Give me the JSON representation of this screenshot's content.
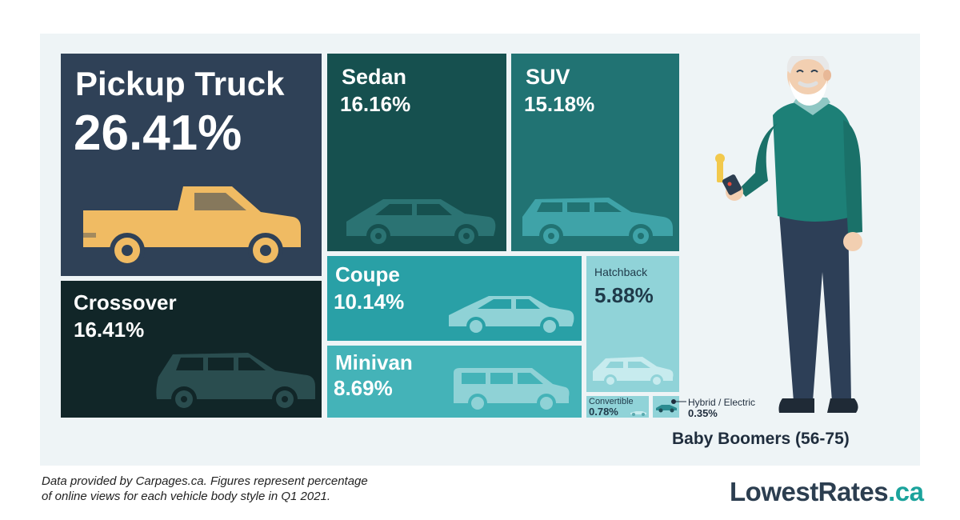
{
  "chart_data": {
    "type": "treemap",
    "title": "",
    "group_label": "Baby Boomers (56-75)",
    "categories": [
      "Pickup Truck",
      "Crossover",
      "Sedan",
      "SUV",
      "Coupe",
      "Minivan",
      "Hatchback",
      "Convertible",
      "Hybrid / Electric"
    ],
    "values": [
      26.41,
      16.41,
      16.16,
      15.18,
      10.14,
      8.69,
      5.88,
      0.78,
      0.35
    ],
    "labels": [
      "26.41%",
      "16.41%",
      "16.16%",
      "15.18%",
      "10.14%",
      "8.69%",
      "5.88%",
      "0.78%",
      "0.35%"
    ],
    "colors": {
      "Pickup Truck": "#2f4157",
      "Crossover": "#112628",
      "Sedan": "#16504f",
      "SUV": "#217373",
      "Coupe": "#29a0a6",
      "Minivan": "#44b3b8",
      "Hatchback": "#90d3d8",
      "Convertible": "#90d3d8",
      "Hybrid / Electric": "#90d3d8"
    }
  },
  "footnote": {
    "line1": "Data provided by Carpages.ca. Figures represent percentage",
    "line2": "of online views for each vehicle body style in Q1 2021."
  },
  "logo": {
    "name": "LowestRates",
    "tld": ".ca"
  },
  "icons": [
    "pickup-truck-icon",
    "sedan-icon",
    "suv-icon",
    "crossover-icon",
    "coupe-icon",
    "minivan-icon",
    "hatchback-icon",
    "convertible-icon",
    "electric-car-icon",
    "elderly-man-with-keys-illustration"
  ]
}
